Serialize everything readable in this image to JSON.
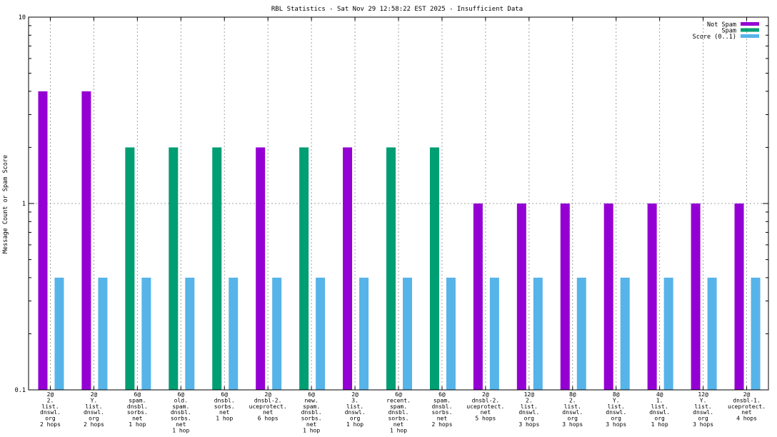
{
  "chart_data": {
    "type": "bar",
    "title": "RBL Statistics - Sat Nov 29 12:58:22 EST 2025 - Insufficient Data",
    "xlabel": "",
    "ylabel": "Message Count or Spam Score",
    "yscale": "log",
    "ylim": [
      0.1,
      10
    ],
    "yticks": [
      "0.1",
      "1",
      "10"
    ],
    "grid": true,
    "legend_position": "top-right",
    "categories": [
      [
        "2@",
        "2.",
        "list.",
        "dnswl.",
        "org",
        "2 hops"
      ],
      [
        "2@",
        "Y.",
        "list.",
        "dnswl.",
        "org",
        "2 hops"
      ],
      [
        "6@",
        "spam.",
        "dnsbl.",
        "sorbs.",
        "net",
        "1 hop"
      ],
      [
        "6@",
        "old.",
        "spam.",
        "dnsbl.",
        "sorbs.",
        "net",
        "1 hop"
      ],
      [
        "6@",
        "dnsbl.",
        "sorbs.",
        "net",
        "1 hop"
      ],
      [
        "2@",
        "dnsbl-2.",
        "uceprotect.",
        "net",
        "6 hops"
      ],
      [
        "6@",
        "new.",
        "spam.",
        "dnsbl.",
        "sorbs.",
        "net",
        "1 hop"
      ],
      [
        "2@",
        "3.",
        "list.",
        "dnswl.",
        "org",
        "1 hop"
      ],
      [
        "6@",
        "recent.",
        "spam.",
        "dnsbl.",
        "sorbs.",
        "net",
        "1 hop"
      ],
      [
        "6@",
        "spam.",
        "dnsbl.",
        "sorbs.",
        "net",
        "2 hops"
      ],
      [
        "2@",
        "dnsbl-2.",
        "uceprotect.",
        "net",
        "5 hops"
      ],
      [
        "12@",
        "2.",
        "list.",
        "dnswl.",
        "org",
        "3 hops"
      ],
      [
        "8@",
        "2.",
        "list.",
        "dnswl.",
        "org",
        "3 hops"
      ],
      [
        "8@",
        "Y.",
        "list.",
        "dnswl.",
        "org",
        "3 hops"
      ],
      [
        "4@",
        "1.",
        "list.",
        "dnswl.",
        "org",
        "1 hop"
      ],
      [
        "12@",
        "Y.",
        "list.",
        "dnswl.",
        "org",
        "3 hops"
      ],
      [
        "2@",
        "dnsbl-1.",
        "uceprotect.",
        "net",
        "4 hops"
      ]
    ],
    "series": [
      {
        "name": "Not Spam",
        "color": "#9400d3",
        "values": [
          4,
          4,
          null,
          null,
          null,
          2,
          null,
          2,
          null,
          null,
          1,
          1,
          1,
          1,
          1,
          1,
          1
        ]
      },
      {
        "name": "Spam",
        "color": "#009e73",
        "values": [
          null,
          null,
          2,
          2,
          2,
          null,
          2,
          null,
          2,
          2,
          null,
          null,
          null,
          null,
          null,
          null,
          null
        ]
      },
      {
        "name": "Score (0..1)",
        "color": "#56b4e9",
        "values": [
          0.4,
          0.4,
          0.4,
          0.4,
          0.4,
          0.4,
          0.4,
          0.4,
          0.4,
          0.4,
          0.4,
          0.4,
          0.4,
          0.4,
          0.4,
          0.4,
          0.4
        ]
      }
    ]
  }
}
